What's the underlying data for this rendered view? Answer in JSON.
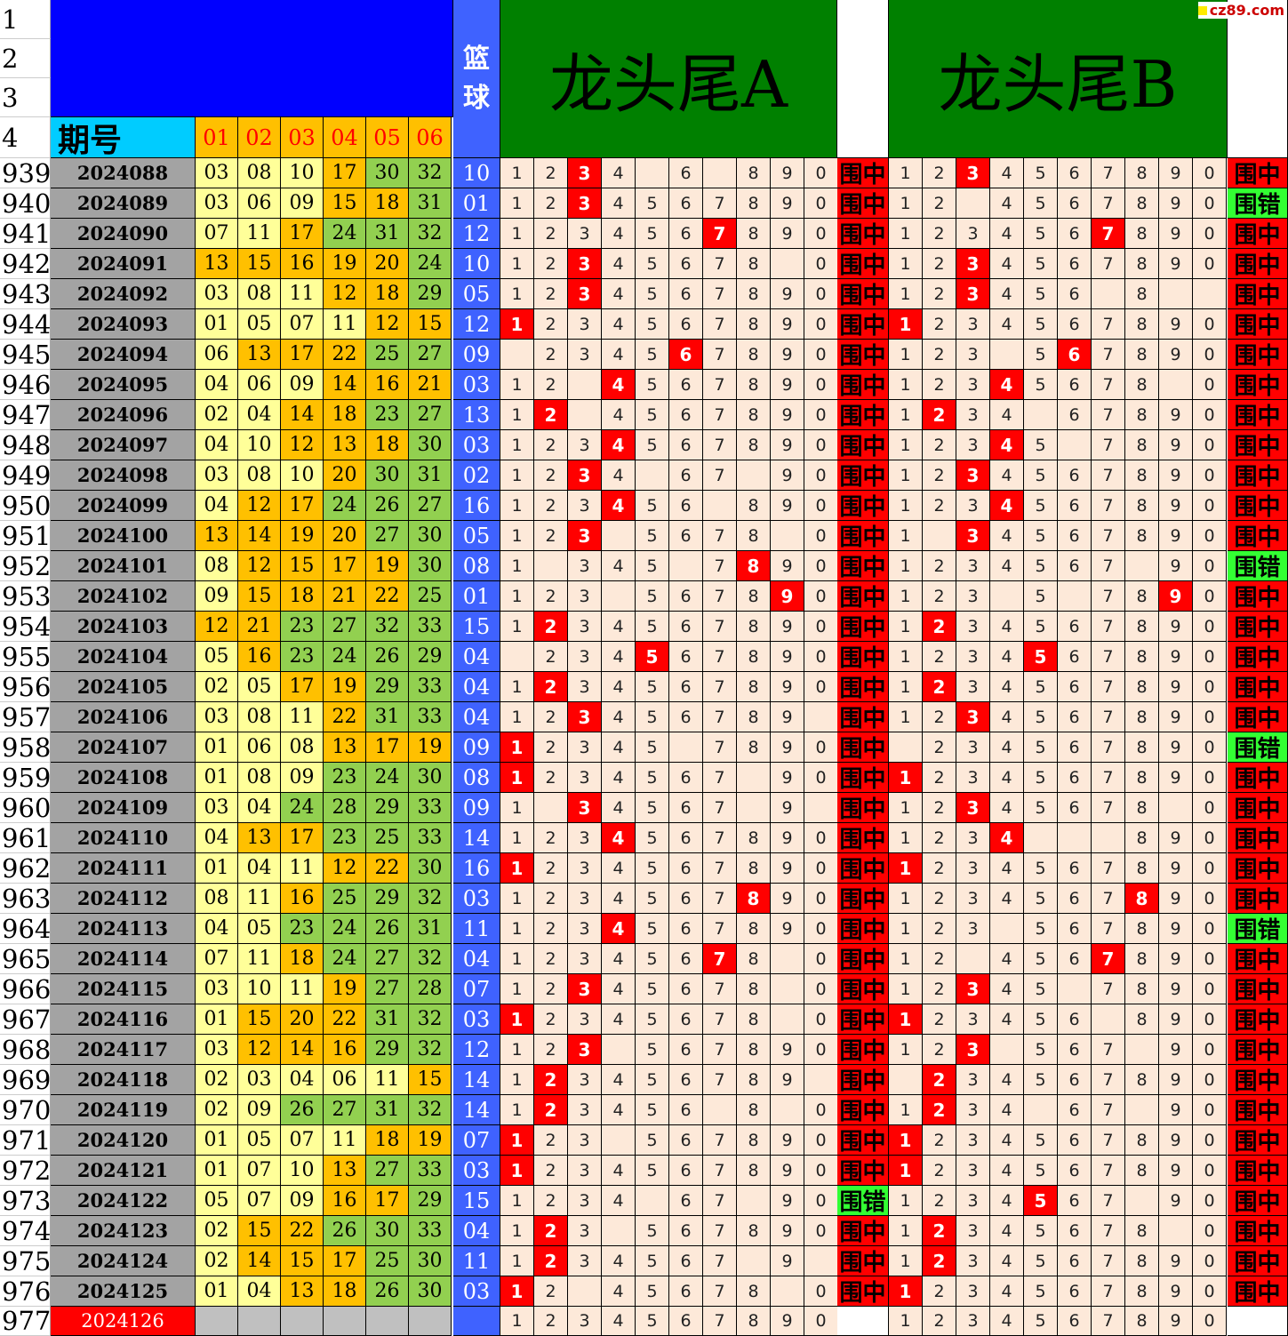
{
  "header": {
    "period_label": "期号",
    "ball_columns": [
      "01",
      "02",
      "03",
      "04",
      "05",
      "06"
    ],
    "lanqiu_label": [
      "篮",
      "球"
    ],
    "title_a": "龙头尾A",
    "title_b": "龙头尾B",
    "watermark": "cz89.com",
    "top_row_numbers": [
      "1",
      "2",
      "3",
      "4"
    ]
  },
  "colors": {
    "red": "#ff0000",
    "green": "#008000",
    "blue": "#0000ff",
    "miss": "#33ff33"
  },
  "hit_label": "围中",
  "miss_label": "围错",
  "rows": [
    {
      "n": "939",
      "p": "2024088",
      "b": [
        "03",
        "08",
        "10",
        "17",
        "30",
        "32"
      ],
      "l": "10",
      "a": "1 2 3 4 _ 6 _ 8 9 0",
      "ah": [
        3
      ],
      "ar": "围中",
      "bb": "1 2 3 4 5 6 7 8 9 0",
      "bh": [
        3
      ],
      "br": "围中"
    },
    {
      "n": "940",
      "p": "2024089",
      "b": [
        "03",
        "06",
        "09",
        "15",
        "18",
        "31"
      ],
      "l": "01",
      "a": "1 2 3 4 5 6 7 8 9 0",
      "ah": [
        3
      ],
      "ar": "围中",
      "bb": "1 2 _ 4 5 6 7 8 9 0",
      "bh": [],
      "br": "围错"
    },
    {
      "n": "941",
      "p": "2024090",
      "b": [
        "07",
        "11",
        "17",
        "24",
        "31",
        "32"
      ],
      "l": "12",
      "a": "1 2 3 4 5 6 7 8 9 0",
      "ah": [
        7
      ],
      "ar": "围中",
      "bb": "1 2 3 4 5 6 7 8 9 0",
      "bh": [
        7
      ],
      "br": "围中"
    },
    {
      "n": "942",
      "p": "2024091",
      "b": [
        "13",
        "15",
        "16",
        "19",
        "20",
        "24"
      ],
      "l": "10",
      "a": "1 2 3 4 5 6 7 8 _ 0",
      "ah": [
        3
      ],
      "ar": "围中",
      "bb": "1 2 3 4 5 6 7 8 9 0",
      "bh": [
        3
      ],
      "br": "围中"
    },
    {
      "n": "943",
      "p": "2024092",
      "b": [
        "03",
        "08",
        "11",
        "12",
        "18",
        "29"
      ],
      "l": "05",
      "a": "1 2 3 4 5 6 7 8 9 0",
      "ah": [
        3
      ],
      "ar": "围中",
      "bb": "1 2 3 4 5 6 _ 8 _ _",
      "bh": [
        3
      ],
      "br": "围中"
    },
    {
      "n": "944",
      "p": "2024093",
      "b": [
        "01",
        "05",
        "07",
        "11",
        "12",
        "15"
      ],
      "l": "12",
      "a": "1 2 3 4 5 6 7 8 9 0",
      "ah": [
        1
      ],
      "ar": "围中",
      "bb": "1 2 3 4 5 6 7 8 9 0",
      "bh": [
        1
      ],
      "br": "围中"
    },
    {
      "n": "945",
      "p": "2024094",
      "b": [
        "06",
        "13",
        "17",
        "22",
        "25",
        "27"
      ],
      "l": "09",
      "a": "_ 2 3 4 5 6 7 8 9 0",
      "ah": [
        6
      ],
      "ar": "围中",
      "bb": "1 2 3 _ 5 6 7 8 9 0",
      "bh": [
        6
      ],
      "br": "围中"
    },
    {
      "n": "946",
      "p": "2024095",
      "b": [
        "04",
        "06",
        "09",
        "14",
        "16",
        "21"
      ],
      "l": "03",
      "a": "1 2 _ 4 5 6 7 8 9 0",
      "ah": [
        4
      ],
      "ar": "围中",
      "bb": "1 2 3 4 5 6 7 8 _ 0",
      "bh": [
        4
      ],
      "br": "围中"
    },
    {
      "n": "947",
      "p": "2024096",
      "b": [
        "02",
        "04",
        "14",
        "18",
        "23",
        "27"
      ],
      "l": "13",
      "a": "1 2 _ 4 5 6 7 8 9 0",
      "ah": [
        2
      ],
      "ar": "围中",
      "bb": "1 2 3 4 _ 6 7 8 9 0",
      "bh": [
        2
      ],
      "br": "围中"
    },
    {
      "n": "948",
      "p": "2024097",
      "b": [
        "04",
        "10",
        "12",
        "13",
        "18",
        "30"
      ],
      "l": "03",
      "a": "1 2 3 4 5 6 7 8 9 0",
      "ah": [
        4
      ],
      "ar": "围中",
      "bb": "1 2 3 4 5 _ 7 8 9 0",
      "bh": [
        4
      ],
      "br": "围中"
    },
    {
      "n": "949",
      "p": "2024098",
      "b": [
        "03",
        "08",
        "10",
        "20",
        "30",
        "31"
      ],
      "l": "02",
      "a": "1 2 3 4 _ 6 7 _ 9 0",
      "ah": [
        3
      ],
      "ar": "围中",
      "bb": "1 2 3 4 5 6 7 8 9 0",
      "bh": [
        3
      ],
      "br": "围中"
    },
    {
      "n": "950",
      "p": "2024099",
      "b": [
        "04",
        "12",
        "17",
        "24",
        "26",
        "27"
      ],
      "l": "16",
      "a": "1 2 3 4 5 6 _ 8 9 0",
      "ah": [
        4
      ],
      "ar": "围中",
      "bb": "1 2 3 4 5 6 7 8 9 0",
      "bh": [
        4
      ],
      "br": "围中"
    },
    {
      "n": "951",
      "p": "2024100",
      "b": [
        "13",
        "14",
        "19",
        "20",
        "27",
        "30"
      ],
      "l": "05",
      "a": "1 2 3 _ 5 6 7 8 _ 0",
      "ah": [
        3
      ],
      "ar": "围中",
      "bb": "1 _ 3 4 5 6 7 8 9 0",
      "bh": [
        3
      ],
      "br": "围中"
    },
    {
      "n": "952",
      "p": "2024101",
      "b": [
        "08",
        "12",
        "15",
        "17",
        "19",
        "30"
      ],
      "l": "08",
      "a": "1 _ 3 4 5 _ 7 8 9 0",
      "ah": [
        8
      ],
      "ar": "围中",
      "bb": "1 2 3 4 5 6 7 _ 9 0",
      "bh": [],
      "br": "围错"
    },
    {
      "n": "953",
      "p": "2024102",
      "b": [
        "09",
        "15",
        "18",
        "21",
        "22",
        "25"
      ],
      "l": "01",
      "a": "1 2 3 _ 5 6 7 8 9 0",
      "ah": [
        9
      ],
      "ar": "围中",
      "bb": "1 2 3 _ 5 _ 7 8 9 0",
      "bh": [
        9
      ],
      "br": "围中"
    },
    {
      "n": "954",
      "p": "2024103",
      "b": [
        "12",
        "21",
        "23",
        "27",
        "32",
        "33"
      ],
      "l": "15",
      "a": "1 2 3 4 5 6 7 8 9 0",
      "ah": [
        2
      ],
      "ar": "围中",
      "bb": "1 2 3 4 5 6 7 8 9 0",
      "bh": [
        2
      ],
      "br": "围中"
    },
    {
      "n": "955",
      "p": "2024104",
      "b": [
        "05",
        "16",
        "23",
        "24",
        "26",
        "29"
      ],
      "l": "04",
      "a": "_ 2 3 4 5 6 7 8 9 0",
      "ah": [
        5
      ],
      "ar": "围中",
      "bb": "1 2 3 4 5 6 7 8 9 0",
      "bh": [
        5
      ],
      "br": "围中"
    },
    {
      "n": "956",
      "p": "2024105",
      "b": [
        "02",
        "05",
        "17",
        "19",
        "29",
        "33"
      ],
      "l": "04",
      "a": "1 2 3 4 5 6 7 8 9 0",
      "ah": [
        2
      ],
      "ar": "围中",
      "bb": "1 2 3 4 5 6 7 8 9 0",
      "bh": [
        2
      ],
      "br": "围中"
    },
    {
      "n": "957",
      "p": "2024106",
      "b": [
        "03",
        "08",
        "11",
        "22",
        "31",
        "33"
      ],
      "l": "04",
      "a": "1 2 3 4 5 6 7 8 9 _",
      "ah": [
        3
      ],
      "ar": "围中",
      "bb": "1 2 3 4 5 6 7 8 9 0",
      "bh": [
        3
      ],
      "br": "围中"
    },
    {
      "n": "958",
      "p": "2024107",
      "b": [
        "01",
        "06",
        "08",
        "13",
        "17",
        "19"
      ],
      "l": "09",
      "a": "1 2 3 4 5 _ 7 8 9 0",
      "ah": [
        1
      ],
      "ar": "围中",
      "bb": "_ 2 3 4 5 6 7 8 9 0",
      "bh": [],
      "br": "围错"
    },
    {
      "n": "959",
      "p": "2024108",
      "b": [
        "01",
        "08",
        "09",
        "23",
        "24",
        "30"
      ],
      "l": "08",
      "a": "1 2 3 4 5 6 7 _ 9 0",
      "ah": [
        1
      ],
      "ar": "围中",
      "bb": "1 2 3 4 5 6 7 8 9 0",
      "bh": [
        1
      ],
      "br": "围中"
    },
    {
      "n": "960",
      "p": "2024109",
      "b": [
        "03",
        "04",
        "24",
        "28",
        "29",
        "33"
      ],
      "l": "09",
      "a": "1 _ 3 4 5 6 7 _ 9 _",
      "ah": [
        3
      ],
      "ar": "围中",
      "bb": "1 2 3 4 5 6 7 8 _ 0",
      "bh": [
        3
      ],
      "br": "围中"
    },
    {
      "n": "961",
      "p": "2024110",
      "b": [
        "04",
        "13",
        "17",
        "23",
        "25",
        "33"
      ],
      "l": "14",
      "a": "1 2 3 4 5 6 7 8 9 0",
      "ah": [
        4
      ],
      "ar": "围中",
      "bb": "1 2 3 4 _ _ _ 8 9 0",
      "bh": [
        4
      ],
      "br": "围中"
    },
    {
      "n": "962",
      "p": "2024111",
      "b": [
        "01",
        "04",
        "11",
        "12",
        "22",
        "30"
      ],
      "l": "16",
      "a": "1 2 3 4 5 6 7 8 9 0",
      "ah": [
        1
      ],
      "ar": "围中",
      "bb": "1 2 3 4 5 6 7 8 9 0",
      "bh": [
        1
      ],
      "br": "围中"
    },
    {
      "n": "963",
      "p": "2024112",
      "b": [
        "08",
        "11",
        "16",
        "25",
        "29",
        "32"
      ],
      "l": "03",
      "a": "1 2 3 4 5 6 7 8 9 0",
      "ah": [
        8
      ],
      "ar": "围中",
      "bb": "1 2 3 4 5 6 7 8 9 0",
      "bh": [
        8
      ],
      "br": "围中"
    },
    {
      "n": "964",
      "p": "2024113",
      "b": [
        "04",
        "05",
        "23",
        "24",
        "26",
        "31"
      ],
      "l": "11",
      "a": "1 2 3 4 5 6 7 8 9 0",
      "ah": [
        4
      ],
      "ar": "围中",
      "bb": "1 2 3 _ 5 6 7 8 9 0",
      "bh": [],
      "br": "围错"
    },
    {
      "n": "965",
      "p": "2024114",
      "b": [
        "07",
        "11",
        "18",
        "24",
        "27",
        "32"
      ],
      "l": "04",
      "a": "1 2 3 4 5 6 7 8 _ 0",
      "ah": [
        7
      ],
      "ar": "围中",
      "bb": "1 2 _ 4 5 6 7 8 9 0",
      "bh": [
        7
      ],
      "br": "围中"
    },
    {
      "n": "966",
      "p": "2024115",
      "b": [
        "03",
        "10",
        "11",
        "19",
        "27",
        "28"
      ],
      "l": "07",
      "a": "1 2 3 4 5 6 7 8 _ 0",
      "ah": [
        3
      ],
      "ar": "围中",
      "bb": "1 2 3 4 5 _ 7 8 9 0",
      "bh": [
        3
      ],
      "br": "围中"
    },
    {
      "n": "967",
      "p": "2024116",
      "b": [
        "01",
        "15",
        "20",
        "22",
        "31",
        "32"
      ],
      "l": "03",
      "a": "1 2 3 4 5 6 7 8 _ 0",
      "ah": [
        1
      ],
      "ar": "围中",
      "bb": "1 2 3 4 5 6 _ 8 9 0",
      "bh": [
        1
      ],
      "br": "围中"
    },
    {
      "n": "968",
      "p": "2024117",
      "b": [
        "03",
        "12",
        "14",
        "16",
        "29",
        "32"
      ],
      "l": "12",
      "a": "1 2 3 _ 5 6 7 8 9 0",
      "ah": [
        3
      ],
      "ar": "围中",
      "bb": "1 2 3 _ 5 6 7 _ 9 0",
      "bh": [
        3
      ],
      "br": "围中"
    },
    {
      "n": "969",
      "p": "2024118",
      "b": [
        "02",
        "03",
        "04",
        "06",
        "11",
        "15"
      ],
      "l": "14",
      "a": "1 2 3 4 5 6 7 8 9 _",
      "ah": [
        2
      ],
      "ar": "围中",
      "bb": "_ 2 3 4 5 6 7 8 9 0",
      "bh": [
        2
      ],
      "br": "围中"
    },
    {
      "n": "970",
      "p": "2024119",
      "b": [
        "02",
        "09",
        "26",
        "27",
        "31",
        "32"
      ],
      "l": "14",
      "a": "1 2 3 4 5 6 _ 8 _ 0",
      "ah": [
        2
      ],
      "ar": "围中",
      "bb": "1 2 3 4 _ 6 7 _ 9 0",
      "bh": [
        2
      ],
      "br": "围中"
    },
    {
      "n": "971",
      "p": "2024120",
      "b": [
        "01",
        "05",
        "07",
        "11",
        "18",
        "19"
      ],
      "l": "07",
      "a": "1 2 3 _ 5 6 7 8 9 0",
      "ah": [
        1
      ],
      "ar": "围中",
      "bb": "1 2 3 4 5 6 7 8 9 0",
      "bh": [
        1
      ],
      "br": "围中"
    },
    {
      "n": "972",
      "p": "2024121",
      "b": [
        "01",
        "07",
        "10",
        "13",
        "27",
        "33"
      ],
      "l": "03",
      "a": "1 2 3 4 5 6 7 8 9 0",
      "ah": [
        1
      ],
      "ar": "围中",
      "bb": "1 2 3 4 5 6 7 8 9 0",
      "bh": [
        1
      ],
      "br": "围中"
    },
    {
      "n": "973",
      "p": "2024122",
      "b": [
        "05",
        "07",
        "09",
        "16",
        "17",
        "29"
      ],
      "l": "15",
      "a": "1 2 3 4 _ 6 7 _ 9 0",
      "ah": [],
      "ar": "围错",
      "bb": "1 2 3 4 5 6 7 _ 9 0",
      "bh": [
        5
      ],
      "br": "围中"
    },
    {
      "n": "974",
      "p": "2024123",
      "b": [
        "02",
        "15",
        "22",
        "26",
        "30",
        "33"
      ],
      "l": "04",
      "a": "1 2 3 _ 5 6 7 8 9 0",
      "ah": [
        2
      ],
      "ar": "围中",
      "bb": "1 2 3 4 5 6 7 8 _ 0",
      "bh": [
        2
      ],
      "br": "围中"
    },
    {
      "n": "975",
      "p": "2024124",
      "b": [
        "02",
        "14",
        "15",
        "17",
        "25",
        "30"
      ],
      "l": "11",
      "a": "1 2 3 4 5 6 7 _ 9 _",
      "ah": [
        2
      ],
      "ar": "围中",
      "bb": "1 2 3 4 5 6 7 8 9 0",
      "bh": [
        2
      ],
      "br": "围中"
    },
    {
      "n": "976",
      "p": "2024125",
      "b": [
        "01",
        "04",
        "13",
        "18",
        "26",
        "30"
      ],
      "l": "03",
      "a": "1 2 _ 4 5 6 7 8 _ 0",
      "ah": [
        1
      ],
      "ar": "围中",
      "bb": "1 2 3 4 5 6 7 8 9 0",
      "bh": [
        1
      ],
      "br": "围中"
    },
    {
      "n": "977",
      "p": "2024126",
      "b": [
        "",
        "",
        "",
        "",
        "",
        ""
      ],
      "l": "",
      "a": "1 2 3 4 5 6 7 8 9 0",
      "ah": [],
      "ar": "",
      "bb": "1 2 3 4 5 6 7 8 9 0",
      "bh": [],
      "br": ""
    }
  ]
}
